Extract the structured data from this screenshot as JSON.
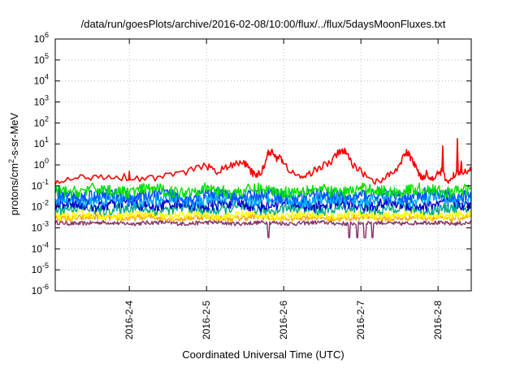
{
  "chart_data": {
    "type": "line",
    "title": "/data/run/goesPlots/archive/2016-02-08/10:00/flux/../flux/5daysMoonFluxes.txt",
    "xlabel": "Coordinated Universal Time (UTC)",
    "ylabel_parts": [
      "protons/cm",
      "2",
      "-s-sr-MeV"
    ],
    "y_scale": "log",
    "ylim": [
      1e-06,
      1000000.0
    ],
    "y_ticks": [
      {
        "value": 1e-06,
        "base": "10",
        "exp": "-6"
      },
      {
        "value": 1e-05,
        "base": "10",
        "exp": "-5"
      },
      {
        "value": 0.0001,
        "base": "10",
        "exp": "-4"
      },
      {
        "value": 0.001,
        "base": "10",
        "exp": "-3"
      },
      {
        "value": 0.01,
        "base": "10",
        "exp": "-2"
      },
      {
        "value": 0.1,
        "base": "10",
        "exp": "-1"
      },
      {
        "value": 1,
        "base": "10",
        "exp": "0"
      },
      {
        "value": 10,
        "base": "10",
        "exp": "1"
      },
      {
        "value": 100,
        "base": "10",
        "exp": "2"
      },
      {
        "value": 1000,
        "base": "10",
        "exp": "3"
      },
      {
        "value": 10000,
        "base": "10",
        "exp": "4"
      },
      {
        "value": 100000,
        "base": "10",
        "exp": "5"
      },
      {
        "value": 1000000,
        "base": "10",
        "exp": "6"
      }
    ],
    "x_domain_days": [
      3.04,
      8.43
    ],
    "x_ticks": [
      {
        "value": 4,
        "label": "2016-2-4"
      },
      {
        "value": 5,
        "label": "2016-2-5"
      },
      {
        "value": 6,
        "label": "2016-2-6"
      },
      {
        "value": 7,
        "label": "2016-2-7"
      },
      {
        "value": 8,
        "label": "2016-2-8"
      }
    ],
    "grid": true,
    "legend": "none",
    "series": [
      {
        "color": "#ff0000",
        "points": [
          [
            3.04,
            0.12
          ],
          [
            3.2,
            0.2
          ],
          [
            3.4,
            0.25
          ],
          [
            3.6,
            0.3
          ],
          [
            3.8,
            0.28
          ],
          [
            4.0,
            0.26
          ],
          [
            4.2,
            0.22
          ],
          [
            4.4,
            0.28
          ],
          [
            4.6,
            0.32
          ],
          [
            4.8,
            0.6
          ],
          [
            5.0,
            0.9
          ],
          [
            5.1,
            0.5
          ],
          [
            5.2,
            0.6
          ],
          [
            5.3,
            0.9
          ],
          [
            5.4,
            1.1
          ],
          [
            5.5,
            1.2
          ],
          [
            5.55,
            0.6
          ],
          [
            5.6,
            0.4
          ],
          [
            5.65,
            0.35
          ],
          [
            5.7,
            0.4
          ],
          [
            5.75,
            1.0
          ],
          [
            5.8,
            4.5
          ],
          [
            5.85,
            3.8
          ],
          [
            5.9,
            2.0
          ],
          [
            5.95,
            3.0
          ],
          [
            6.0,
            1.0
          ],
          [
            6.1,
            0.5
          ],
          [
            6.2,
            0.25
          ],
          [
            6.3,
            0.3
          ],
          [
            6.4,
            0.6
          ],
          [
            6.5,
            0.9
          ],
          [
            6.6,
            1.2
          ],
          [
            6.7,
            3.5
          ],
          [
            6.75,
            5.0
          ],
          [
            6.8,
            4.0
          ],
          [
            6.9,
            1.0
          ],
          [
            7.0,
            0.5
          ],
          [
            7.1,
            0.25
          ],
          [
            7.2,
            0.15
          ],
          [
            7.3,
            0.25
          ],
          [
            7.4,
            0.35
          ],
          [
            7.5,
            1.0
          ],
          [
            7.55,
            2.5
          ],
          [
            7.6,
            4.0
          ],
          [
            7.65,
            2.0
          ],
          [
            7.7,
            1.0
          ],
          [
            7.75,
            0.4
          ],
          [
            7.8,
            0.25
          ],
          [
            7.85,
            0.4
          ],
          [
            7.9,
            0.2
          ],
          [
            7.95,
            0.3
          ],
          [
            8.0,
            0.4
          ],
          [
            8.05,
            0.5
          ],
          [
            8.1,
            0.2
          ],
          [
            8.15,
            0.15
          ],
          [
            8.2,
            0.3
          ],
          [
            8.25,
            0.5
          ],
          [
            8.3,
            0.4
          ],
          [
            8.35,
            0.6
          ],
          [
            8.43,
            0.5
          ]
        ],
        "spikes": [
          [
            4.0,
            0.5
          ],
          [
            5.8,
            5.0
          ],
          [
            6.8,
            5.0
          ],
          [
            7.6,
            4.0
          ],
          [
            8.06,
            8.0
          ],
          [
            8.25,
            18.0
          ],
          [
            8.3,
            1.5
          ]
        ]
      },
      {
        "color": "#00e000",
        "base": 0.06,
        "amp": 0.28
      },
      {
        "color": "#0055ff",
        "base": 0.035,
        "amp": 0.3
      },
      {
        "color": "#00aaff",
        "base": 0.022,
        "amp": 0.3
      },
      {
        "color": "#0000cc",
        "base": 0.013,
        "amp": 0.28
      },
      {
        "color": "#00aa88",
        "base": 0.008,
        "amp": 0.25
      },
      {
        "color": "#ffff00",
        "base": 0.004,
        "amp": 0.18
      },
      {
        "color": "#ffaa00",
        "base": 0.003,
        "amp": 0.15
      },
      {
        "color": "#883366",
        "base": 0.0017,
        "amp": 0.1,
        "dips": [
          5.8,
          6.85,
          6.95,
          7.05,
          7.15
        ]
      }
    ]
  }
}
